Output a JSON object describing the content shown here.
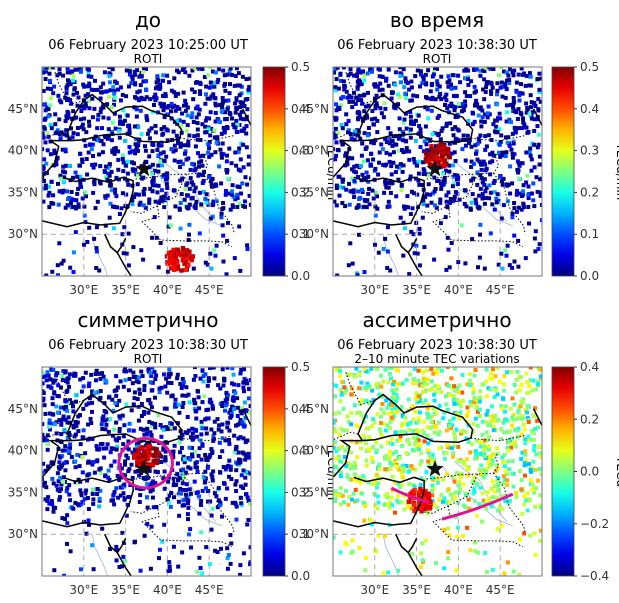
{
  "colors": {
    "map_edge": "#777777",
    "coast": "#000000",
    "border": "#000000",
    "grid": "#aaaaaa",
    "annotation": "#e0149a",
    "epicenter": "#111111"
  },
  "chart_data": [
    {
      "type": "scatter",
      "panel": "top-left",
      "heading": "до",
      "title": "06 February 2023 10:25:00 UT",
      "subtitle": "ROTI",
      "colorbar_label": "TECu/min",
      "clim": [
        0.0,
        0.5
      ],
      "colorbar_ticks": [
        "0.0",
        "0.1",
        "0.2",
        "0.3",
        "0.4",
        "0.5"
      ],
      "colormap": "jet",
      "xlim": [
        25,
        50
      ],
      "ylim": [
        25,
        50
      ],
      "x_ticks": [
        "30°E",
        "35°E",
        "40°E",
        "45°E"
      ],
      "y_ticks": [
        "30°N",
        "35°N",
        "40°N",
        "45°N"
      ],
      "x_tick_values": [
        30,
        35,
        40,
        45
      ],
      "y_tick_values": [
        30,
        35,
        40,
        45
      ],
      "epicenter": {
        "lon": 37.2,
        "lat": 37.8
      },
      "pattern": "background_low",
      "hotspots": [
        {
          "lon": 41.5,
          "lat": 27.0,
          "value": 0.48
        }
      ],
      "annotation": null
    },
    {
      "type": "scatter",
      "panel": "top-right",
      "heading": "во время",
      "title": "06 February 2023 10:38:30 UT",
      "subtitle": "ROTI",
      "colorbar_label": "TECu/min",
      "clim": [
        0.0,
        0.5
      ],
      "colorbar_ticks": [
        "0.0",
        "0.1",
        "0.2",
        "0.3",
        "0.4",
        "0.5"
      ],
      "colormap": "jet",
      "xlim": [
        25,
        50
      ],
      "ylim": [
        25,
        50
      ],
      "x_ticks": [
        "30°E",
        "35°E",
        "40°E",
        "45°E"
      ],
      "y_ticks": [
        "30°N",
        "35°N",
        "40°N",
        "45°N"
      ],
      "x_tick_values": [
        30,
        35,
        40,
        45
      ],
      "y_tick_values": [
        30,
        35,
        40,
        45
      ],
      "epicenter": {
        "lon": 37.2,
        "lat": 37.8
      },
      "pattern": "background_low",
      "hotspots": [
        {
          "lon": 37.6,
          "lat": 39.3,
          "value": 0.5
        }
      ],
      "annotation": null
    },
    {
      "type": "scatter",
      "panel": "bottom-left",
      "heading": "симметрично",
      "title": "06 February 2023 10:38:30 UT",
      "subtitle": "ROTI",
      "colorbar_label": "TECu/min",
      "clim": [
        0.0,
        0.5
      ],
      "colorbar_ticks": [
        "0.0",
        "0.1",
        "0.2",
        "0.3",
        "0.4",
        "0.5"
      ],
      "colormap": "jet",
      "xlim": [
        25,
        50
      ],
      "ylim": [
        25,
        50
      ],
      "x_ticks": [
        "30°E",
        "35°E",
        "40°E",
        "45°E"
      ],
      "y_ticks": [
        "30°N",
        "35°N",
        "40°N",
        "45°N"
      ],
      "x_tick_values": [
        30,
        35,
        40,
        45
      ],
      "y_tick_values": [
        30,
        35,
        40,
        45
      ],
      "epicenter": {
        "lon": 37.2,
        "lat": 37.8
      },
      "pattern": "background_low",
      "hotspots": [
        {
          "lon": 37.6,
          "lat": 39.2,
          "value": 0.5
        }
      ],
      "annotation": {
        "kind": "circle",
        "center": {
          "lon": 37.4,
          "lat": 38.5
        },
        "radius_deg": 3.2
      }
    },
    {
      "type": "scatter",
      "panel": "bottom-right",
      "heading": "ассиметрично",
      "title": "06 February 2023 10:38:30 UT",
      "subtitle": "2–10 minute TEC variations",
      "colorbar_label": "TECu",
      "clim": [
        -0.4,
        0.4
      ],
      "colorbar_ticks": [
        "−0.4",
        "−0.2",
        "0.0",
        "0.2",
        "0.4"
      ],
      "colormap": "jet",
      "xlim": [
        25,
        50
      ],
      "ylim": [
        25,
        50
      ],
      "x_ticks": [
        "30°E",
        "35°E",
        "40°E",
        "45°E"
      ],
      "y_ticks": [
        "30°N",
        "35°N",
        "40°N",
        "45°N"
      ],
      "x_tick_values": [
        30,
        35,
        40,
        45
      ],
      "y_tick_values": [
        30,
        35,
        40,
        45
      ],
      "epicenter": {
        "lon": 37.2,
        "lat": 37.8
      },
      "pattern": "background_mid",
      "hotspots": [
        {
          "lon": 35.5,
          "lat": 34.0,
          "value": 0.35
        }
      ],
      "annotation": {
        "kind": "arcs",
        "arcs": [
          [
            [
              32.0,
              35.5
            ],
            [
              34.0,
              34.5
            ],
            [
              36.5,
              33.8
            ]
          ],
          [
            [
              38.0,
              31.8
            ],
            [
              42.0,
              32.8
            ],
            [
              46.5,
              34.8
            ]
          ]
        ]
      }
    }
  ]
}
